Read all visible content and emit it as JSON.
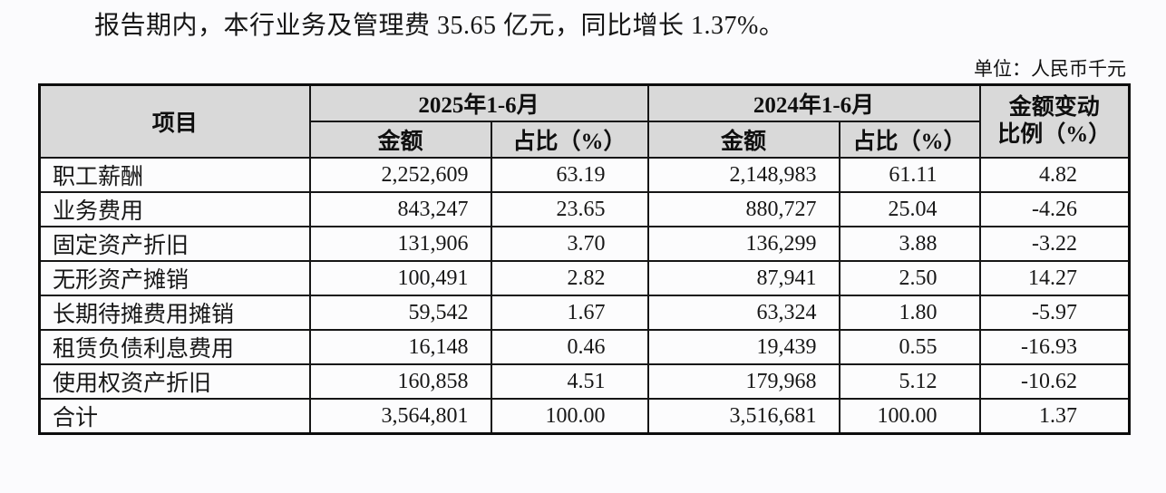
{
  "page": {
    "intro": "报告期内，本行业务及管理费 35.65 亿元，同比增长 1.37%。",
    "unit_label": "单位：人民币千元"
  },
  "table": {
    "header": {
      "item": "项目",
      "period_2025": "2025年1-6月",
      "period_2024": "2024年1-6月",
      "amount": "金额",
      "ratio": "占比（%）",
      "change_line1": "金额变动",
      "change_line2": "比例（%）"
    },
    "rows": [
      {
        "item": "职工薪酬",
        "amount_2025": "2,252,609",
        "ratio_2025": "63.19",
        "amount_2024": "2,148,983",
        "ratio_2024": "61.11",
        "change": "4.82"
      },
      {
        "item": "业务费用",
        "amount_2025": "843,247",
        "ratio_2025": "23.65",
        "amount_2024": "880,727",
        "ratio_2024": "25.04",
        "change": "-4.26"
      },
      {
        "item": "固定资产折旧",
        "amount_2025": "131,906",
        "ratio_2025": "3.70",
        "amount_2024": "136,299",
        "ratio_2024": "3.88",
        "change": "-3.22"
      },
      {
        "item": "无形资产摊销",
        "amount_2025": "100,491",
        "ratio_2025": "2.82",
        "amount_2024": "87,941",
        "ratio_2024": "2.50",
        "change": "14.27"
      },
      {
        "item": "长期待摊费用摊销",
        "amount_2025": "59,542",
        "ratio_2025": "1.67",
        "amount_2024": "63,324",
        "ratio_2024": "1.80",
        "change": "-5.97"
      },
      {
        "item": "租赁负债利息费用",
        "amount_2025": "16,148",
        "ratio_2025": "0.46",
        "amount_2024": "19,439",
        "ratio_2024": "0.55",
        "change": "-16.93"
      },
      {
        "item": "使用权资产折旧",
        "amount_2025": "160,858",
        "ratio_2025": "4.51",
        "amount_2024": "179,968",
        "ratio_2024": "5.12",
        "change": "-10.62"
      },
      {
        "item": "合计",
        "amount_2025": "3,564,801",
        "ratio_2025": "100.00",
        "amount_2024": "3,516,681",
        "ratio_2024": "100.00",
        "change": "1.37"
      }
    ]
  },
  "colors": {
    "header_bg": "#d9d9d9",
    "border": "#161616",
    "page_bg": "#fbfbfd",
    "text": "#1a1a1a"
  }
}
